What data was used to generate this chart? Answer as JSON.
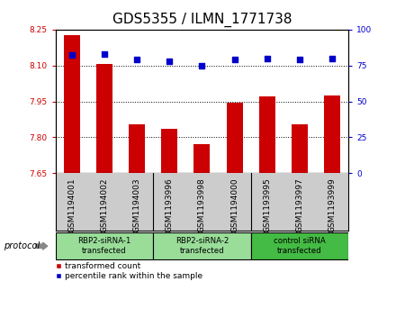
{
  "title": "GDS5355 / ILMN_1771738",
  "samples": [
    "GSM1194001",
    "GSM1194002",
    "GSM1194003",
    "GSM1193996",
    "GSM1193998",
    "GSM1194000",
    "GSM1193995",
    "GSM1193997",
    "GSM1193999"
  ],
  "transformed_counts": [
    8.225,
    8.105,
    7.855,
    7.835,
    7.77,
    7.945,
    7.97,
    7.855,
    7.975
  ],
  "percentile_ranks": [
    82,
    83,
    79,
    78,
    75,
    79,
    80,
    79,
    80
  ],
  "ylim_left": [
    7.65,
    8.25
  ],
  "ylim_right": [
    0,
    100
  ],
  "yticks_left": [
    7.65,
    7.8,
    7.95,
    8.1,
    8.25
  ],
  "yticks_right": [
    0,
    25,
    50,
    75,
    100
  ],
  "bar_color": "#cc0000",
  "dot_color": "#0000cc",
  "tick_area_bg": "#cccccc",
  "protocol_groups": [
    {
      "label": "RBP2-siRNA-1\ntransfected",
      "start": 0,
      "end": 3,
      "color": "#99dd99"
    },
    {
      "label": "RBP2-siRNA-2\ntransfected",
      "start": 3,
      "end": 6,
      "color": "#99dd99"
    },
    {
      "label": "control siRNA\ntransfected",
      "start": 6,
      "end": 9,
      "color": "#44bb44"
    }
  ],
  "legend_items": [
    {
      "label": "transformed count",
      "color": "#cc0000"
    },
    {
      "label": "percentile rank within the sample",
      "color": "#0000cc"
    }
  ],
  "protocol_label": "protocol",
  "title_fontsize": 11,
  "tick_fontsize": 6.5,
  "label_fontsize": 7
}
